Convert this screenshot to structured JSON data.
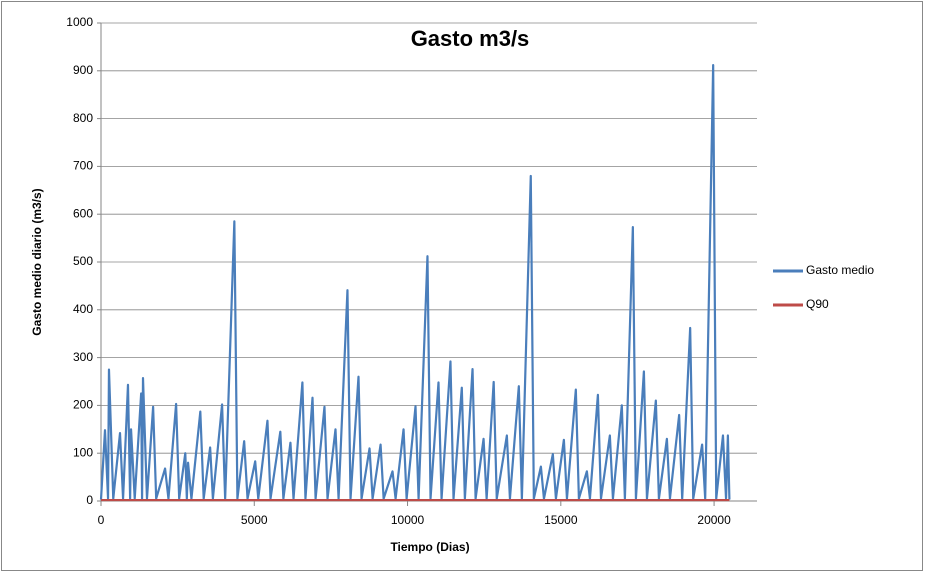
{
  "chart_data": {
    "type": "line",
    "title": "Gasto m3/s",
    "xlabel": "Tiempo (Dias)",
    "ylabel": "Gasto medio diario (m3/s)",
    "xlim": [
      0,
      21400
    ],
    "xticks": [
      0,
      5000,
      10000,
      15000,
      20000
    ],
    "ylim": [
      0,
      1000
    ],
    "yticks": [
      0,
      100,
      200,
      300,
      400,
      500,
      600,
      700,
      800,
      900,
      1000
    ],
    "grid": true,
    "legend": "right",
    "series": [
      {
        "name": "Gasto medio",
        "color": "#4a7ebb",
        "x": [
          0,
          130,
          230,
          260,
          400,
          620,
          720,
          880,
          950,
          980,
          1100,
          1310,
          1340,
          1370,
          1500,
          1700,
          1800,
          2090,
          2200,
          2450,
          2550,
          2750,
          2800,
          2840,
          2950,
          3240,
          3350,
          3560,
          3650,
          3950,
          4050,
          4350,
          4450,
          4670,
          4780,
          5030,
          5130,
          5430,
          5530,
          5850,
          5950,
          6180,
          6280,
          6570,
          6670,
          6900,
          7000,
          7290,
          7390,
          7650,
          7750,
          8040,
          8140,
          8400,
          8500,
          8760,
          8860,
          9120,
          9220,
          9510,
          9610,
          9870,
          9970,
          10260,
          10360,
          10650,
          10750,
          11010,
          11110,
          11400,
          11500,
          11770,
          11870,
          12120,
          12220,
          12480,
          12580,
          12810,
          12910,
          13240,
          13340,
          13630,
          13730,
          14020,
          14120,
          14350,
          14450,
          14740,
          14840,
          15100,
          15200,
          15490,
          15590,
          15850,
          15950,
          16210,
          16310,
          16600,
          16700,
          16990,
          17090,
          17350,
          17450,
          17710,
          17810,
          18100,
          18200,
          18460,
          18560,
          18860,
          18960,
          19220,
          19320,
          19610,
          19710,
          19970,
          20070,
          20290,
          20390,
          20450,
          20500
        ],
        "values": [
          3,
          148,
          5,
          275,
          5,
          142,
          5,
          243,
          5,
          150,
          5,
          225,
          5,
          257,
          5,
          197,
          5,
          68,
          5,
          203,
          5,
          100,
          5,
          80,
          5,
          187,
          5,
          112,
          5,
          202,
          5,
          585,
          5,
          125,
          5,
          83,
          5,
          168,
          5,
          145,
          5,
          122,
          5,
          248,
          5,
          216,
          5,
          197,
          5,
          150,
          5,
          441,
          5,
          260,
          5,
          110,
          5,
          118,
          5,
          62,
          5,
          150,
          5,
          198,
          5,
          512,
          5,
          248,
          5,
          292,
          5,
          237,
          5,
          276,
          5,
          130,
          5,
          249,
          5,
          137,
          5,
          240,
          5,
          680,
          5,
          72,
          5,
          98,
          5,
          128,
          5,
          233,
          5,
          62,
          5,
          222,
          5,
          137,
          5,
          200,
          5,
          573,
          5,
          271,
          5,
          210,
          5,
          130,
          5,
          180,
          5,
          362,
          5,
          118,
          5,
          912,
          5,
          137,
          5,
          137,
          3
        ]
      },
      {
        "name": "Q90",
        "color": "#be4b48",
        "x": [
          0,
          20500
        ],
        "values": [
          2,
          2
        ]
      }
    ]
  }
}
